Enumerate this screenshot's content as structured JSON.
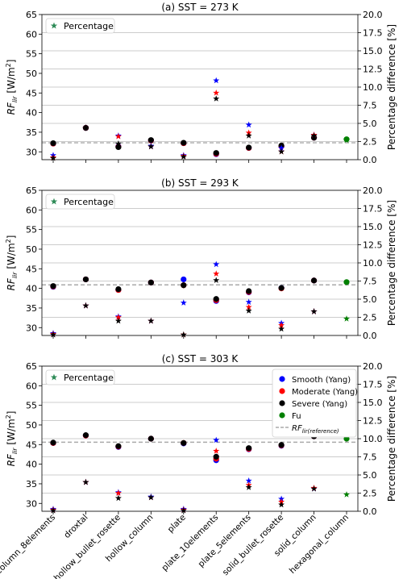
{
  "chart_data": [
    {
      "type": "scatter",
      "title": "(a) SST = 273 K",
      "ylabel_left": "RF_lir [W/m^2]",
      "ylabel_right": "Percentage difference [%]",
      "ylim_left": [
        28,
        65
      ],
      "ylim_right": [
        0,
        20
      ],
      "yticks_left": [
        30,
        35,
        40,
        45,
        50,
        55,
        60,
        65
      ],
      "yticks_right": [
        0.0,
        2.5,
        5.0,
        7.5,
        10.0,
        12.5,
        15.0,
        17.5,
        20.0
      ],
      "reference_line": 32.3,
      "legend": "top-left",
      "rf_series": [
        {
          "name": "Smooth (Yang)",
          "color": "#0000ff",
          "values": [
            32.1,
            36.1,
            31.4,
            32.9,
            32.2,
            29.4,
            31.0,
            31.4,
            33.6,
            null
          ]
        },
        {
          "name": "Moderate (Yang)",
          "color": "#ff0000",
          "values": [
            32.1,
            36.1,
            31.3,
            32.9,
            32.2,
            29.5,
            31.0,
            31.4,
            33.6,
            null
          ]
        },
        {
          "name": "Severe (Yang)",
          "color": "#000000",
          "values": [
            32.2,
            36.1,
            31.2,
            33.0,
            32.3,
            29.7,
            31.1,
            31.6,
            33.6,
            null
          ]
        },
        {
          "name": "Fu",
          "color": "#008000",
          "values": [
            null,
            null,
            null,
            null,
            null,
            null,
            null,
            null,
            null,
            33.2
          ]
        }
      ],
      "percentage_series": [
        {
          "color": "#0000ff",
          "values": [
            0.6,
            4.4,
            3.3,
            1.9,
            0.6,
            10.9,
            4.8,
            1.6,
            3.4,
            null
          ]
        },
        {
          "color": "#ff0000",
          "values": [
            0.3,
            4.4,
            3.2,
            1.8,
            0.5,
            9.2,
            3.7,
            1.1,
            3.4,
            null
          ]
        },
        {
          "color": "#000000",
          "values": [
            0.2,
            4.4,
            2.2,
            1.8,
            0.4,
            8.4,
            3.3,
            1.1,
            3.3,
            null
          ]
        },
        {
          "color": "#008000",
          "values": [
            null,
            null,
            null,
            null,
            null,
            null,
            null,
            null,
            null,
            2.7
          ]
        }
      ]
    },
    {
      "type": "scatter",
      "title": "(b) SST = 293 K",
      "ylabel_left": "RF_lir [W/m^2]",
      "ylabel_right": "Percentage difference [%]",
      "ylim_left": [
        28,
        65
      ],
      "ylim_right": [
        0,
        20
      ],
      "yticks_left": [
        30,
        35,
        40,
        45,
        50,
        55,
        60,
        65
      ],
      "yticks_right": [
        0.0,
        2.5,
        5.0,
        7.5,
        10.0,
        12.5,
        15.0,
        17.5,
        20.0
      ],
      "reference_line": 40.9,
      "legend": "top-left",
      "rf_series": [
        {
          "name": "Smooth (Yang)",
          "color": "#0000ff",
          "values": [
            40.4,
            42.3,
            39.6,
            41.5,
            42.3,
            36.8,
            39.0,
            40.1,
            42.0,
            null
          ]
        },
        {
          "name": "Moderate (Yang)",
          "color": "#ff0000",
          "values": [
            40.5,
            42.3,
            39.6,
            41.5,
            40.8,
            37.0,
            39.1,
            40.0,
            42.0,
            null
          ]
        },
        {
          "name": "Severe (Yang)",
          "color": "#000000",
          "values": [
            40.6,
            42.3,
            39.8,
            41.5,
            40.8,
            37.3,
            39.3,
            40.1,
            42.0,
            null
          ]
        },
        {
          "name": "Fu",
          "color": "#008000",
          "values": [
            null,
            null,
            null,
            null,
            null,
            null,
            null,
            null,
            null,
            41.6
          ]
        }
      ],
      "percentage_series": [
        {
          "color": "#0000ff",
          "values": [
            0.3,
            4.1,
            2.6,
            2.0,
            4.5,
            9.8,
            4.6,
            1.7,
            3.3,
            null
          ]
        },
        {
          "color": "#ff0000",
          "values": [
            0.2,
            4.1,
            2.5,
            2.0,
            0.1,
            8.5,
            3.9,
            1.4,
            3.3,
            null
          ]
        },
        {
          "color": "#000000",
          "values": [
            0.1,
            4.1,
            2.0,
            2.0,
            0.1,
            7.6,
            3.4,
            0.9,
            3.3,
            null
          ]
        },
        {
          "color": "#008000",
          "values": [
            null,
            null,
            null,
            null,
            null,
            null,
            null,
            null,
            null,
            2.3
          ]
        }
      ]
    },
    {
      "type": "scatter",
      "title": "(c) SST = 303 K",
      "ylabel_left": "RF_lir [W/m^2]",
      "ylabel_right": "Percentage difference [%]",
      "ylim_left": [
        28,
        65
      ],
      "ylim_right": [
        0,
        20
      ],
      "yticks_left": [
        30,
        35,
        40,
        45,
        50,
        55,
        60,
        65
      ],
      "yticks_right": [
        0.0,
        2.5,
        5.0,
        7.5,
        10.0,
        12.5,
        15.0,
        17.5,
        20.0
      ],
      "reference_line": 45.6,
      "legend": "top-left",
      "rf_series": [
        {
          "name": "Smooth (Yang)",
          "color": "#0000ff",
          "values": [
            45.4,
            47.3,
            44.4,
            46.5,
            45.3,
            41.0,
            43.8,
            44.7,
            47.1,
            null
          ]
        },
        {
          "name": "Moderate (Yang)",
          "color": "#ff0000",
          "values": [
            45.4,
            47.3,
            44.5,
            46.5,
            45.4,
            41.4,
            43.9,
            44.8,
            47.1,
            null
          ]
        },
        {
          "name": "Severe (Yang)",
          "color": "#000000",
          "values": [
            45.5,
            47.4,
            44.6,
            46.5,
            45.4,
            41.9,
            44.1,
            44.9,
            47.1,
            null
          ]
        },
        {
          "name": "Fu",
          "color": "#008000",
          "values": [
            null,
            null,
            null,
            null,
            null,
            null,
            null,
            null,
            null,
            46.5
          ]
        }
      ],
      "percentage_series": [
        {
          "color": "#0000ff",
          "values": [
            0.3,
            4.0,
            2.6,
            2.0,
            0.3,
            9.8,
            4.2,
            1.7,
            3.1,
            null
          ]
        },
        {
          "color": "#ff0000",
          "values": [
            0.2,
            4.0,
            2.5,
            1.9,
            0.2,
            8.3,
            3.6,
            1.3,
            3.2,
            null
          ]
        },
        {
          "color": "#000000",
          "values": [
            0.1,
            4.0,
            1.8,
            1.9,
            0.1,
            7.5,
            3.3,
            0.9,
            3.1,
            null
          ]
        },
        {
          "color": "#008000",
          "values": [
            null,
            null,
            null,
            null,
            null,
            null,
            null,
            null,
            null,
            2.3
          ]
        }
      ]
    }
  ],
  "categories": [
    "column_8elements",
    "droxtal",
    "hollow_bullet_rosette",
    "hollow_column",
    "plate",
    "plate_10elements",
    "plate_5elements",
    "solid_bullet_rosette",
    "solid_column",
    "hexagonal_column"
  ],
  "legend_percentage": "Percentage",
  "legend_main": [
    {
      "label": "Smooth (Yang)",
      "color": "#0000ff",
      "kind": "circle"
    },
    {
      "label": "Moderate (Yang)",
      "color": "#ff0000",
      "kind": "circle"
    },
    {
      "label": "Severe (Yang)",
      "color": "#000000",
      "kind": "circle"
    },
    {
      "label": "Fu",
      "color": "#008000",
      "kind": "circle"
    },
    {
      "label": "RF_lir(reference)",
      "color": "#aaaaaa",
      "kind": "dashed"
    }
  ],
  "colors": {
    "grid": "#cccccc",
    "reference": "#aaaaaa",
    "percentage_legend_star": "#2e8b57"
  }
}
